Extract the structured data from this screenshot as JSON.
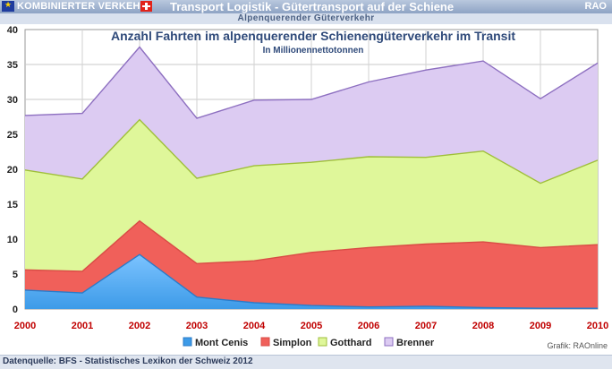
{
  "header": {
    "brand_label": "KOMBINIERTER VERKEHR",
    "eu_icon": "eu-flag-icon",
    "swiss_icon": "swiss-flag-icon",
    "title": "Transport Logistik - Gütertransport auf der Schiene",
    "right_label": "RAO",
    "subtitle": "Alpenquerender Güterverkehr"
  },
  "footer": {
    "source": "Datenquelle: BFS - Statistisches Lexikon der Schweiz 2012"
  },
  "chart_data": {
    "type": "area",
    "stacked": true,
    "title": "Anzahl Fahrten im alpenquerender Schienengüterverkehr im Transit",
    "subtitle": "In Millionennettotonnen",
    "credit": "Grafik: RAOnline",
    "x": [
      "2000",
      "2001",
      "2002",
      "2003",
      "2004",
      "2005",
      "2006",
      "2007",
      "2008",
      "2009",
      "2010"
    ],
    "ylim": [
      0,
      40
    ],
    "yticks": [
      0,
      5,
      10,
      15,
      20,
      25,
      30,
      35,
      40
    ],
    "grid": true,
    "legend_position": "bottom",
    "series": [
      {
        "name": "Mont Cenis",
        "color": "#3d9be8",
        "values": [
          2.7,
          2.3,
          7.8,
          1.7,
          0.9,
          0.5,
          0.3,
          0.4,
          0.2,
          0.1,
          0.1
        ]
      },
      {
        "name": "Simplon",
        "color": "#f0605a",
        "values": [
          2.9,
          3.1,
          4.8,
          4.8,
          6.0,
          7.6,
          8.5,
          8.9,
          9.4,
          8.7,
          9.1
        ]
      },
      {
        "name": "Gotthard",
        "color": "#dff79a",
        "values": [
          14.3,
          13.2,
          14.5,
          12.2,
          13.6,
          12.9,
          13.0,
          12.4,
          13.0,
          9.2,
          12.1
        ]
      },
      {
        "name": "Brenner",
        "color": "#dccbf2",
        "values": [
          7.8,
          9.4,
          10.4,
          8.6,
          9.4,
          9.0,
          10.7,
          12.5,
          12.9,
          12.1,
          13.9
        ]
      }
    ]
  }
}
